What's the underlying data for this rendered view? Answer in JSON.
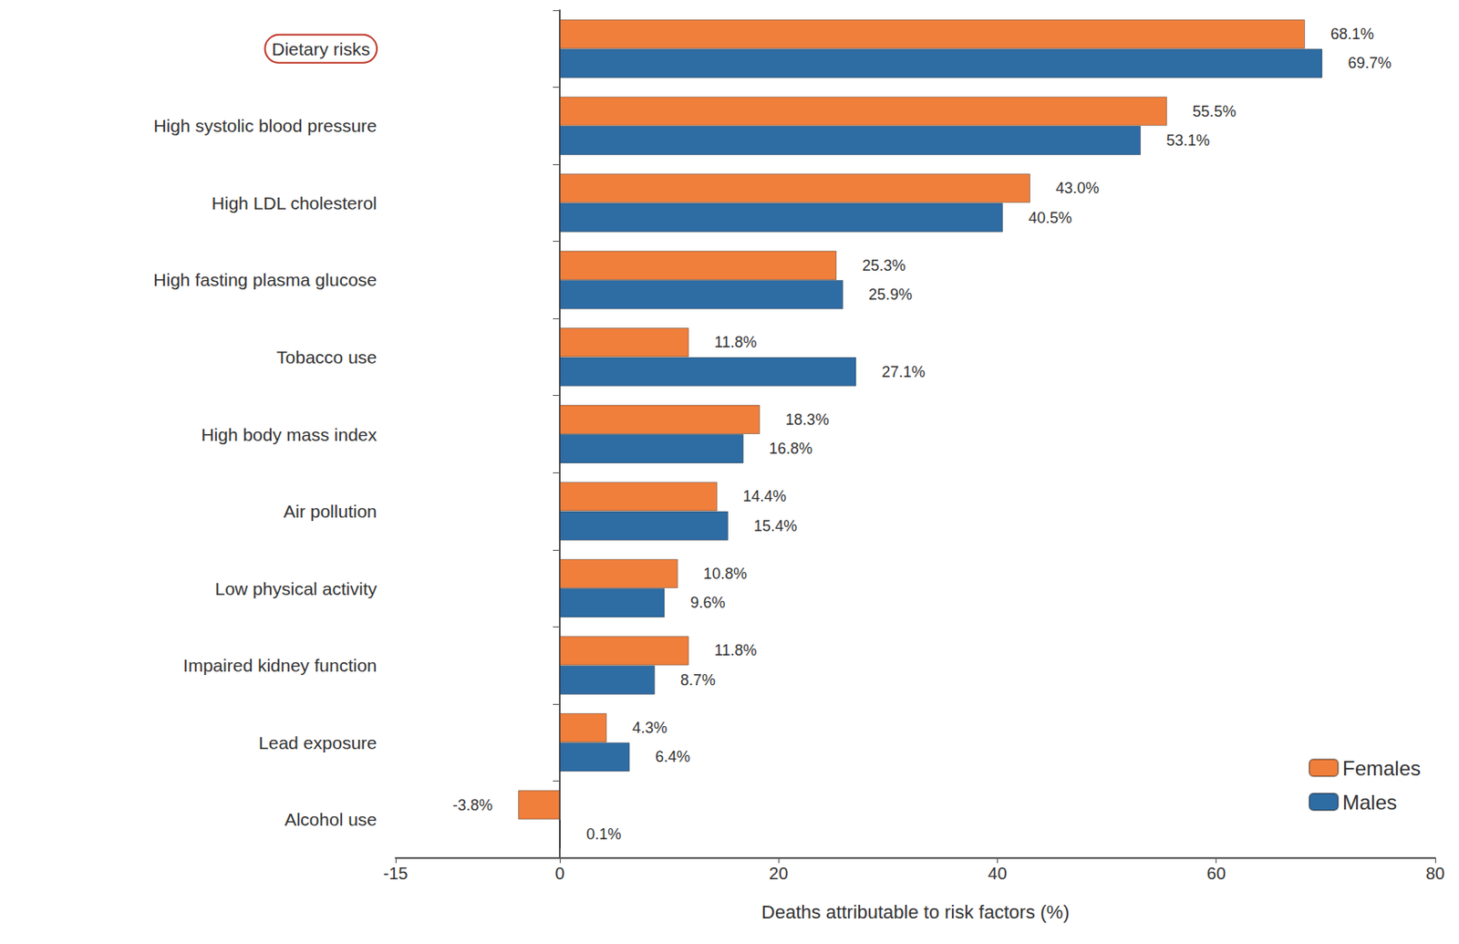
{
  "chart_data": {
    "type": "bar",
    "orientation": "horizontal",
    "xlabel": "Deaths attributable to risk factors (%)",
    "categories": [
      "Dietary risks",
      "High systolic blood pressure",
      "High LDL cholesterol",
      "High fasting plasma glucose",
      "Tobacco use",
      "High body mass index",
      "Air pollution",
      "Low physical activity",
      "Impaired kidney function",
      "Lead exposure",
      "Alcohol use"
    ],
    "series": [
      {
        "name": "Females",
        "color": "#f07f3c",
        "values": [
          68.1,
          55.5,
          43.0,
          25.3,
          11.8,
          18.3,
          14.4,
          10.8,
          11.8,
          4.3,
          -3.8
        ],
        "value_labels": [
          "68.1%",
          "55.5%",
          "43.0%",
          "25.3%",
          "11.8%",
          "18.3%",
          "14.4%",
          "10.8%",
          "11.8%",
          "4.3%",
          "-3.8%"
        ]
      },
      {
        "name": "Males",
        "color": "#2e6ca4",
        "values": [
          69.7,
          53.1,
          40.5,
          25.9,
          27.1,
          16.8,
          15.4,
          9.6,
          8.7,
          6.4,
          0.1
        ],
        "value_labels": [
          "69.7%",
          "53.1%",
          "40.5%",
          "25.9%",
          "27.1%",
          "16.8%",
          "15.4%",
          "9.6%",
          "8.7%",
          "6.4%",
          "0.1%"
        ]
      }
    ],
    "xlim": [
      -15,
      80
    ],
    "xticks": [
      -15,
      0,
      20,
      40,
      60,
      80
    ],
    "data_labels": true,
    "grid": false,
    "legend": "lower right"
  }
}
